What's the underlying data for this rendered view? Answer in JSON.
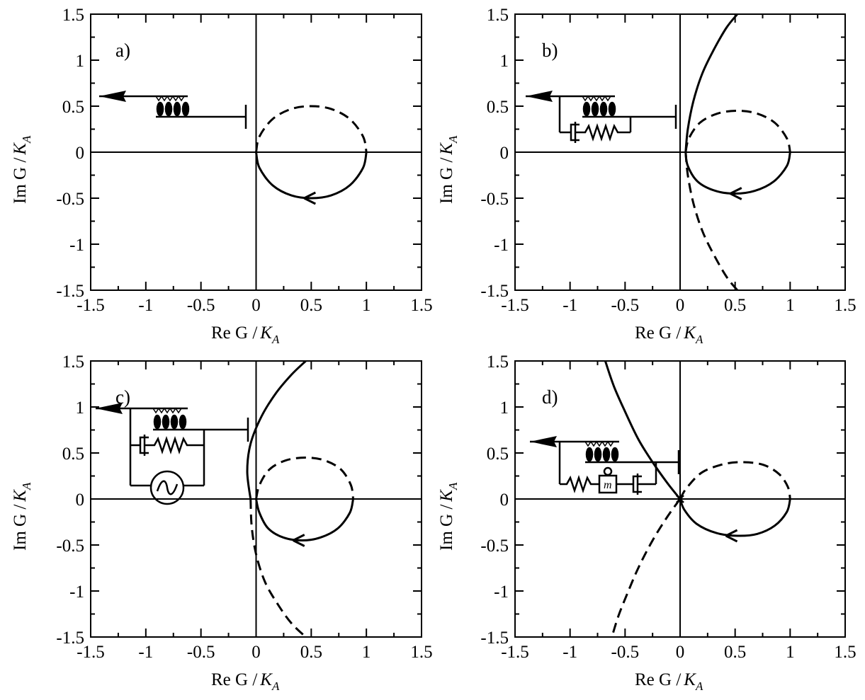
{
  "figure": {
    "panels": [
      {
        "label": "a)",
        "xlabel": "Re G /",
        "xlabel_sym": "K",
        "xlabel_sub": "A",
        "ylabel": "Im G /",
        "ylabel_sym": "K",
        "ylabel_sub": "A"
      },
      {
        "label": "b)",
        "xlabel": "Re G /",
        "xlabel_sym": "K",
        "xlabel_sub": "A",
        "ylabel": "Im G /",
        "ylabel_sym": "K",
        "ylabel_sub": "A"
      },
      {
        "label": "c)",
        "xlabel": "Re G /",
        "xlabel_sym": "K",
        "xlabel_sub": "A",
        "ylabel": "Im G /",
        "ylabel_sym": "K",
        "ylabel_sub": "A"
      },
      {
        "label": "d)",
        "xlabel": "Re G /",
        "xlabel_sym": "K",
        "xlabel_sub": "A",
        "ylabel": "Im G /",
        "ylabel_sym": "K",
        "ylabel_sub": "A"
      }
    ],
    "inset_mass_label": "m"
  },
  "chart_data": [
    {
      "type": "line",
      "panel": "a",
      "xlim": [
        -1.5,
        1.5
      ],
      "ylim": [
        -1.5,
        1.5
      ],
      "xticks": [
        "-1.5",
        "-1",
        "-0.5",
        "0",
        "0.5",
        "1",
        "1.5"
      ],
      "yticks": [
        "-1.5",
        "-1",
        "-0.5",
        "0",
        "0.5",
        "1",
        "1.5"
      ],
      "grid": false,
      "series": [
        {
          "style": "solid",
          "x": [
            1.0,
            0.97,
            0.85,
            0.68,
            0.5,
            0.32,
            0.15,
            0.03,
            0.0
          ],
          "y": [
            0.0,
            -0.17,
            -0.36,
            -0.47,
            -0.5,
            -0.47,
            -0.36,
            -0.17,
            0.0
          ]
        },
        {
          "style": "dashed",
          "x": [
            0.0,
            0.03,
            0.15,
            0.32,
            0.5,
            0.68,
            0.85,
            0.97,
            1.0
          ],
          "y": [
            0.0,
            0.17,
            0.36,
            0.47,
            0.5,
            0.47,
            0.36,
            0.17,
            0.0
          ]
        }
      ],
      "arrow_at": [
        0.5,
        -0.5
      ]
    },
    {
      "type": "line",
      "panel": "b",
      "xlim": [
        -1.5,
        1.5
      ],
      "ylim": [
        -1.5,
        1.5
      ],
      "xticks": [
        "-1.5",
        "-1",
        "-0.5",
        "0",
        "0.5",
        "1",
        "1.5"
      ],
      "yticks": [
        "-1.5",
        "-1",
        "-0.5",
        "0",
        "0.5",
        "1",
        "1.5"
      ],
      "grid": false,
      "series": [
        {
          "style": "solid",
          "x": [
            1.0,
            0.97,
            0.85,
            0.68,
            0.5,
            0.32,
            0.16,
            0.07,
            0.05
          ],
          "y": [
            0.0,
            -0.15,
            -0.32,
            -0.42,
            -0.45,
            -0.42,
            -0.32,
            -0.15,
            0.0
          ]
        },
        {
          "style": "dashed",
          "x": [
            0.05,
            0.08,
            0.18,
            0.34,
            0.52,
            0.7,
            0.86,
            0.97,
            1.0
          ],
          "y": [
            0.0,
            0.15,
            0.32,
            0.42,
            0.45,
            0.42,
            0.32,
            0.15,
            0.0
          ]
        },
        {
          "style": "solid",
          "x": [
            0.05,
            0.07,
            0.12,
            0.2,
            0.3,
            0.42,
            0.52
          ],
          "y": [
            0.0,
            0.25,
            0.55,
            0.85,
            1.1,
            1.35,
            1.5
          ]
        },
        {
          "style": "dashed",
          "x": [
            0.05,
            0.07,
            0.12,
            0.2,
            0.3,
            0.42,
            0.52
          ],
          "y": [
            0.0,
            -0.25,
            -0.55,
            -0.85,
            -1.1,
            -1.35,
            -1.5
          ]
        }
      ],
      "arrow_at": [
        0.52,
        -0.45
      ]
    },
    {
      "type": "line",
      "panel": "c",
      "xlim": [
        -1.5,
        1.5
      ],
      "ylim": [
        -1.5,
        1.5
      ],
      "xticks": [
        "-1.5",
        "-1",
        "-0.5",
        "0",
        "0.5",
        "1",
        "1.5"
      ],
      "yticks": [
        "-1.5",
        "-1",
        "-0.5",
        "0",
        "0.5",
        "1",
        "1.5"
      ],
      "grid": false,
      "series": [
        {
          "style": "solid",
          "x": [
            0.88,
            0.85,
            0.74,
            0.58,
            0.42,
            0.25,
            0.11,
            0.03,
            0.0
          ],
          "y": [
            0.0,
            -0.15,
            -0.32,
            -0.42,
            -0.45,
            -0.42,
            -0.32,
            -0.15,
            0.0
          ]
        },
        {
          "style": "dashed",
          "x": [
            0.0,
            0.03,
            0.12,
            0.27,
            0.45,
            0.62,
            0.77,
            0.86,
            0.88
          ],
          "y": [
            0.0,
            0.15,
            0.32,
            0.42,
            0.45,
            0.42,
            0.32,
            0.15,
            0.0
          ]
        },
        {
          "style": "solid",
          "x": [
            -0.05,
            -0.08,
            -0.05,
            0.05,
            0.18,
            0.32,
            0.45
          ],
          "y": [
            0.0,
            0.3,
            0.6,
            0.9,
            1.15,
            1.35,
            1.5
          ]
        },
        {
          "style": "dashed",
          "x": [
            -0.05,
            -0.04,
            0.0,
            0.08,
            0.2,
            0.32,
            0.45
          ],
          "y": [
            0.0,
            -0.3,
            -0.6,
            -0.9,
            -1.15,
            -1.35,
            -1.5
          ]
        }
      ],
      "arrow_at": [
        0.4,
        -0.45
      ]
    },
    {
      "type": "line",
      "panel": "d",
      "xlim": [
        -1.5,
        1.5
      ],
      "ylim": [
        -1.5,
        1.5
      ],
      "xticks": [
        "-1.5",
        "-1",
        "-0.5",
        "0",
        "0.5",
        "1",
        "1.5"
      ],
      "yticks": [
        "-1.5",
        "-1",
        "-0.5",
        "0",
        "0.5",
        "1",
        "1.5"
      ],
      "grid": false,
      "series": [
        {
          "style": "solid",
          "x": [
            1.0,
            0.97,
            0.86,
            0.7,
            0.52,
            0.33,
            0.15,
            0.04,
            0.0
          ],
          "y": [
            0.0,
            -0.14,
            -0.29,
            -0.38,
            -0.4,
            -0.37,
            -0.27,
            -0.12,
            0.0
          ]
        },
        {
          "style": "dashed",
          "x": [
            0.0,
            0.06,
            0.2,
            0.4,
            0.58,
            0.76,
            0.9,
            0.98,
            1.0
          ],
          "y": [
            0.0,
            0.12,
            0.29,
            0.38,
            0.4,
            0.37,
            0.27,
            0.13,
            0.0
          ]
        },
        {
          "style": "solid",
          "x": [
            0.0,
            -0.12,
            -0.25,
            -0.38,
            -0.5,
            -0.6,
            -0.68
          ],
          "y": [
            0.0,
            0.18,
            0.4,
            0.65,
            0.95,
            1.22,
            1.5
          ]
        },
        {
          "style": "dashed",
          "x": [
            0.0,
            -0.12,
            -0.25,
            -0.38,
            -0.48,
            -0.56,
            -0.62
          ],
          "y": [
            0.0,
            -0.2,
            -0.45,
            -0.75,
            -1.03,
            -1.27,
            -1.5
          ]
        }
      ],
      "arrow_at": [
        0.48,
        -0.4
      ]
    }
  ]
}
